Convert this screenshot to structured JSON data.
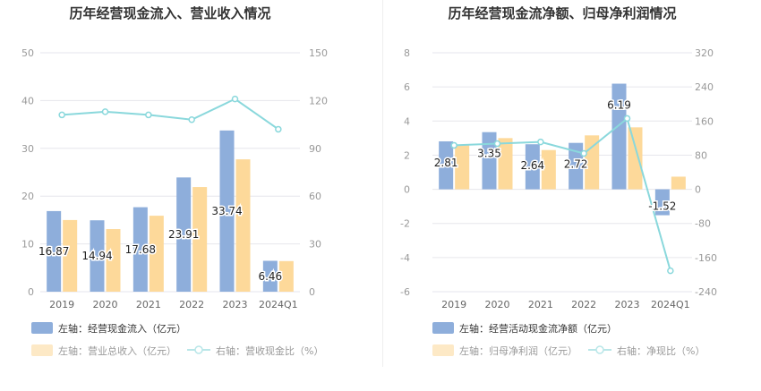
{
  "colors": {
    "bar1": "#8eaedb",
    "bar2": "#fdd99a",
    "line": "#8ad8dc",
    "grid": "#e6e6ec",
    "axis": "#999"
  },
  "chart_data": [
    {
      "type": "bar+line",
      "title": "历年经营现金流入、营业收入情况",
      "categories": [
        "2019",
        "2020",
        "2021",
        "2022",
        "2023",
        "2024Q1"
      ],
      "left_axis": {
        "min": 0,
        "max": 50,
        "ticks": [
          0,
          10,
          20,
          30,
          40,
          50
        ]
      },
      "right_axis": {
        "min": 0,
        "max": 150,
        "ticks": [
          0,
          30,
          60,
          90,
          120,
          150
        ]
      },
      "series": [
        {
          "name": "左轴：经营现金流入（亿元）",
          "type": "bar",
          "axis": "left",
          "values": [
            16.87,
            14.94,
            17.68,
            23.91,
            33.74,
            6.46
          ],
          "labels": [
            "16.87",
            "14.94",
            "17.68",
            "23.91",
            "33.74",
            "6.46"
          ]
        },
        {
          "name": "左轴：营业总收入（亿元）",
          "type": "bar",
          "axis": "left",
          "values": [
            15.0,
            13.1,
            15.9,
            21.9,
            27.7,
            6.4
          ]
        },
        {
          "name": "右轴：营收现金比（%）",
          "type": "line",
          "axis": "right",
          "values": [
            111,
            113,
            111,
            108,
            121,
            102
          ]
        }
      ]
    },
    {
      "type": "bar+line",
      "title": "历年经营现金流净额、归母净利润情况",
      "categories": [
        "2019",
        "2020",
        "2021",
        "2022",
        "2023",
        "2024Q1"
      ],
      "left_axis": {
        "min": -6,
        "max": 8,
        "ticks": [
          -6,
          -4,
          -2,
          0,
          2,
          4,
          6,
          8
        ]
      },
      "right_axis": {
        "min": -240,
        "max": 320,
        "ticks": [
          -240,
          -160,
          -80,
          0,
          80,
          160,
          240,
          320
        ]
      },
      "series": [
        {
          "name": "左轴：经营活动现金流净额（亿元）",
          "type": "bar",
          "axis": "left",
          "values": [
            2.81,
            3.35,
            2.64,
            2.72,
            6.19,
            -1.52
          ],
          "labels": [
            "2.81",
            "3.35",
            "2.64",
            "2.72",
            "6.19",
            "-1.52"
          ]
        },
        {
          "name": "左轴：归母净利润（亿元）",
          "type": "bar",
          "axis": "left",
          "values": [
            2.58,
            3.0,
            2.3,
            3.16,
            3.63,
            0.74
          ]
        },
        {
          "name": "右轴：净现比（%）",
          "type": "line",
          "axis": "right",
          "values": [
            103,
            107,
            111,
            84,
            166,
            -191
          ]
        }
      ]
    }
  ]
}
